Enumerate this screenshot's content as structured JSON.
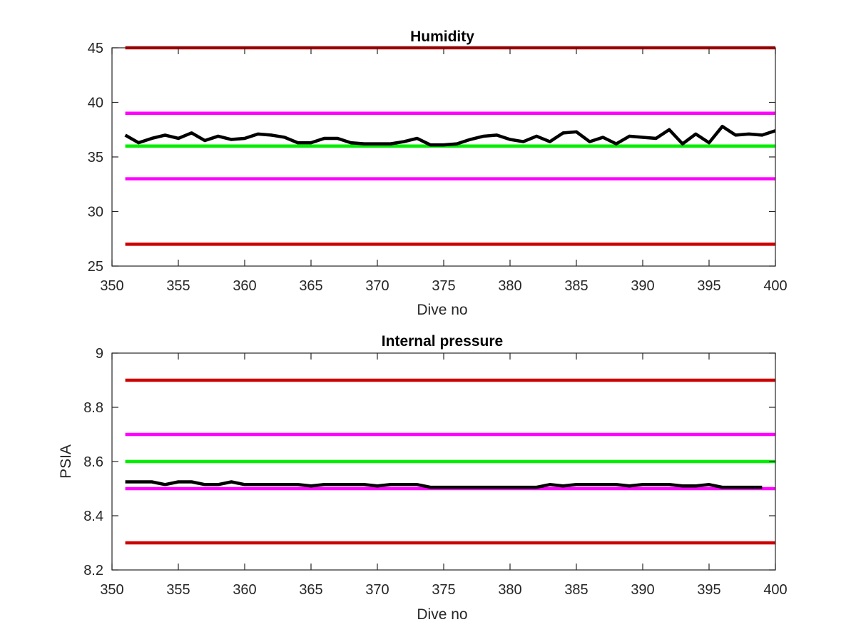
{
  "chart_data": [
    {
      "type": "line",
      "title": "Humidity",
      "xlabel": "Dive no",
      "ylabel": "",
      "xlim": [
        350,
        400
      ],
      "ylim": [
        25,
        45
      ],
      "xticks": [
        "350",
        "355",
        "360",
        "365",
        "370",
        "375",
        "380",
        "385",
        "390",
        "395",
        "400"
      ],
      "yticks": [
        "25",
        "30",
        "35",
        "40",
        "45"
      ],
      "grid": false,
      "colors": {
        "red": "#cc0000",
        "magenta": "#ff00ff",
        "green": "#00ee00",
        "data": "#000000"
      },
      "threshold_lines": [
        {
          "y": 45,
          "color": "red"
        },
        {
          "y": 39,
          "color": "magenta"
        },
        {
          "y": 36,
          "color": "green"
        },
        {
          "y": 33,
          "color": "magenta"
        },
        {
          "y": 27,
          "color": "red"
        }
      ],
      "series": [
        {
          "x": [
            351,
            352,
            353,
            354,
            355,
            356,
            357,
            358,
            359,
            360,
            361,
            362,
            363,
            364,
            365,
            366,
            367,
            368,
            369,
            370,
            371,
            372,
            373,
            374,
            375,
            376,
            377,
            378,
            379,
            380,
            381,
            382,
            383,
            384,
            385,
            386,
            387,
            388,
            389,
            390,
            391,
            392,
            393,
            394,
            395,
            396,
            397,
            398,
            399,
            400
          ],
          "values": [
            37.0,
            36.3,
            36.7,
            37.0,
            36.7,
            37.2,
            36.5,
            36.9,
            36.6,
            36.7,
            37.1,
            37.0,
            36.8,
            36.3,
            36.3,
            36.7,
            36.7,
            36.3,
            36.2,
            36.2,
            36.2,
            36.4,
            36.7,
            36.1,
            36.1,
            36.2,
            36.6,
            36.9,
            37.0,
            36.6,
            36.4,
            36.9,
            36.4,
            37.2,
            37.3,
            36.4,
            36.8,
            36.2,
            36.9,
            36.8,
            36.7,
            37.5,
            36.2,
            37.1,
            36.3,
            37.8,
            37.0,
            37.1,
            37.0,
            37.4
          ]
        }
      ]
    },
    {
      "type": "line",
      "title": "Internal pressure",
      "xlabel": "Dive no",
      "ylabel": "PSIA",
      "xlim": [
        350,
        400
      ],
      "ylim": [
        8.2,
        9.0
      ],
      "xticks": [
        "350",
        "355",
        "360",
        "365",
        "370",
        "375",
        "380",
        "385",
        "390",
        "395",
        "400"
      ],
      "yticks": [
        "8.2",
        "8.4",
        "8.6",
        "8.8",
        "9"
      ],
      "grid": false,
      "colors": {
        "red": "#cc0000",
        "magenta": "#ff00ff",
        "green": "#00ee00",
        "data": "#000000"
      },
      "threshold_lines": [
        {
          "y": 8.9,
          "color": "red"
        },
        {
          "y": 8.7,
          "color": "magenta"
        },
        {
          "y": 8.6,
          "color": "green"
        },
        {
          "y": 8.5,
          "color": "magenta"
        },
        {
          "y": 8.3,
          "color": "red"
        }
      ],
      "series": [
        {
          "x": [
            351,
            352,
            353,
            354,
            355,
            356,
            357,
            358,
            359,
            360,
            361,
            362,
            363,
            364,
            365,
            366,
            367,
            368,
            369,
            370,
            371,
            372,
            373,
            374,
            375,
            376,
            377,
            378,
            379,
            380,
            381,
            382,
            383,
            384,
            385,
            386,
            387,
            388,
            389,
            390,
            391,
            392,
            393,
            394,
            395,
            396,
            397,
            398,
            399
          ],
          "values": [
            8.525,
            8.525,
            8.525,
            8.515,
            8.525,
            8.525,
            8.515,
            8.515,
            8.525,
            8.515,
            8.515,
            8.515,
            8.515,
            8.515,
            8.51,
            8.515,
            8.515,
            8.515,
            8.515,
            8.51,
            8.515,
            8.515,
            8.515,
            8.505,
            8.505,
            8.505,
            8.505,
            8.505,
            8.505,
            8.505,
            8.505,
            8.505,
            8.515,
            8.51,
            8.515,
            8.515,
            8.515,
            8.515,
            8.51,
            8.515,
            8.515,
            8.515,
            8.51,
            8.51,
            8.515,
            8.505,
            8.505,
            8.505,
            8.505
          ]
        }
      ]
    }
  ]
}
